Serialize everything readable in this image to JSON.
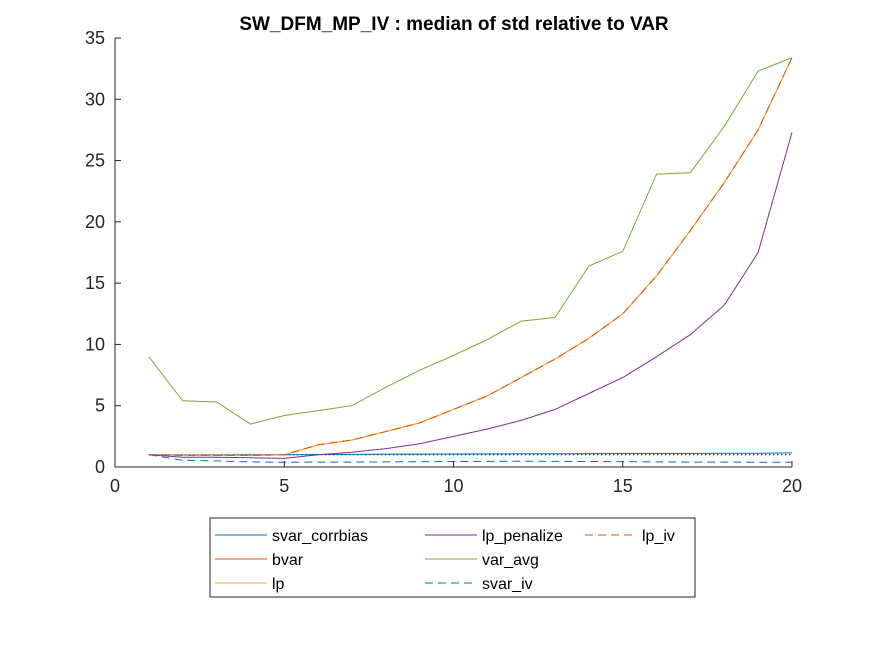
{
  "chart_data": {
    "type": "line",
    "title": "SW_DFM_MP_IV : median of std relative to VAR",
    "xlabel": "",
    "ylabel": "",
    "xlim": [
      0,
      20
    ],
    "ylim": [
      0,
      35
    ],
    "xticks": [
      0,
      5,
      10,
      15,
      20
    ],
    "yticks": [
      0,
      5,
      10,
      15,
      20,
      25,
      30,
      35
    ],
    "grid": false,
    "legend_position": "bottom-center",
    "reference_line": {
      "y": 1,
      "style": "dotted",
      "color": "#000000"
    },
    "x": [
      1,
      2,
      3,
      4,
      5,
      6,
      7,
      8,
      9,
      10,
      11,
      12,
      13,
      14,
      15,
      16,
      17,
      18,
      19,
      20
    ],
    "series": [
      {
        "name": "svar_corrbias",
        "color": "#0072BD",
        "dash": "solid",
        "values": [
          1.0,
          0.98,
          0.98,
          1.0,
          1.0,
          1.02,
          1.03,
          1.05,
          1.05,
          1.06,
          1.07,
          1.08,
          1.08,
          1.09,
          1.1,
          1.1,
          1.1,
          1.12,
          1.12,
          1.15
        ]
      },
      {
        "name": "bvar",
        "color": "#D95319",
        "dash": "solid",
        "values": [
          1.0,
          0.95,
          0.95,
          0.95,
          1.0,
          1.8,
          2.2,
          2.9,
          3.6,
          4.7,
          5.8,
          7.3,
          8.8,
          10.5,
          12.5,
          15.6,
          19.3,
          23.2,
          27.5,
          33.4
        ]
      },
      {
        "name": "lp",
        "color": "#EDB120",
        "dash": "solid",
        "values": [
          1.0,
          0.95,
          0.95,
          0.95,
          1.0,
          1.8,
          2.2,
          2.9,
          3.6,
          4.7,
          5.8,
          7.3,
          8.8,
          10.5,
          12.5,
          15.6,
          19.3,
          23.2,
          27.5,
          33.4
        ]
      },
      {
        "name": "lp_penalize",
        "color": "#7E2F8E",
        "dash": "solid",
        "values": [
          1.0,
          0.8,
          0.8,
          0.75,
          0.7,
          1.0,
          1.2,
          1.5,
          1.9,
          2.5,
          3.1,
          3.8,
          4.7,
          6.0,
          7.3,
          9.0,
          10.8,
          13.2,
          17.5,
          27.3
        ]
      },
      {
        "name": "var_avg",
        "color": "#77AC30",
        "dash": "solid",
        "values": [
          9.0,
          5.4,
          5.3,
          3.5,
          4.2,
          4.6,
          5.0,
          6.5,
          7.9,
          9.1,
          10.4,
          11.9,
          12.2,
          16.4,
          17.6,
          23.9,
          24.0,
          27.8,
          32.3,
          33.4
        ]
      },
      {
        "name": "svar_iv",
        "color": "#0072BD",
        "dash": "dashed",
        "values": [
          1.0,
          0.55,
          0.5,
          0.42,
          0.38,
          0.4,
          0.4,
          0.42,
          0.43,
          0.45,
          0.46,
          0.47,
          0.46,
          0.45,
          0.44,
          0.42,
          0.4,
          0.4,
          0.38,
          0.38
        ]
      },
      {
        "name": "lp_iv",
        "color": "#D95319",
        "dash": "dashed",
        "values": [
          1.0,
          0.95,
          0.95,
          0.95,
          1.0,
          1.8,
          2.2,
          2.9,
          3.6,
          4.7,
          5.8,
          7.3,
          8.8,
          10.5,
          12.5,
          15.6,
          19.3,
          23.2,
          27.5,
          33.4
        ]
      }
    ],
    "legend_layout": [
      [
        "svar_corrbias",
        "lp_penalize",
        "lp_iv"
      ],
      [
        "bvar",
        "var_avg"
      ],
      [
        "lp",
        "svar_iv"
      ]
    ]
  }
}
